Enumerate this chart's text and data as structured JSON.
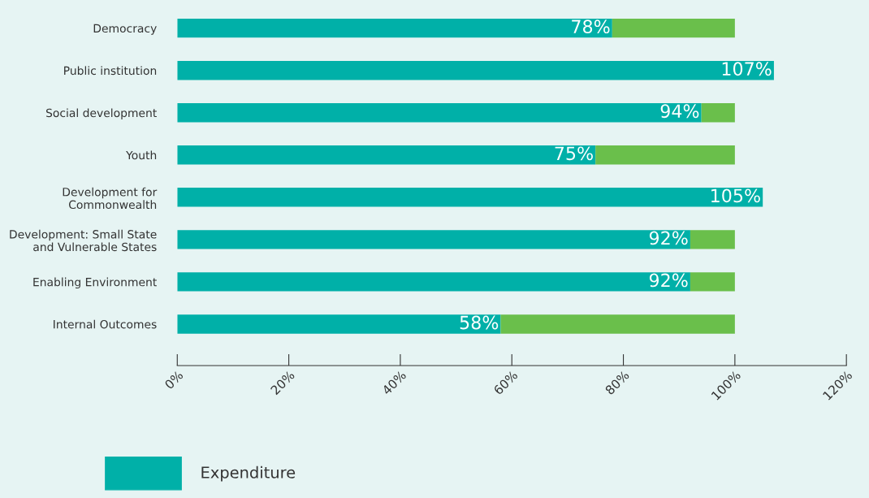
{
  "chart_data": {
    "type": "bar",
    "orientation": "horizontal",
    "stacked": true,
    "categories": [
      "Democracy",
      "Public institution",
      "Social development",
      "Youth",
      "Development for\nCommonwealth",
      "Development: Small State\nand Vulnerable States",
      "Enabling Environment",
      "Internal Outcomes"
    ],
    "series": [
      {
        "name": "Expenditure",
        "color": "#00b0a8",
        "values": [
          78,
          107,
          94,
          75,
          105,
          92,
          92,
          58
        ],
        "value_labels": [
          "78%",
          "107%",
          "94%",
          "75%",
          "105%",
          "92%",
          "92%",
          "58%"
        ]
      },
      {
        "color": "#6abf4b",
        "values": [
          22,
          null,
          6,
          25,
          null,
          8,
          8,
          42
        ]
      }
    ],
    "xlim": [
      0,
      120
    ],
    "xticks": [
      {
        "value": 0,
        "label": "0%"
      },
      {
        "value": 20,
        "label": "20%"
      },
      {
        "value": 40,
        "label": "40%"
      },
      {
        "value": 60,
        "label": "60%"
      },
      {
        "value": 80,
        "label": "80%"
      },
      {
        "value": 100,
        "label": "100%"
      },
      {
        "value": 120,
        "label": "120%"
      }
    ],
    "grid": false,
    "legend": "bottom left"
  }
}
